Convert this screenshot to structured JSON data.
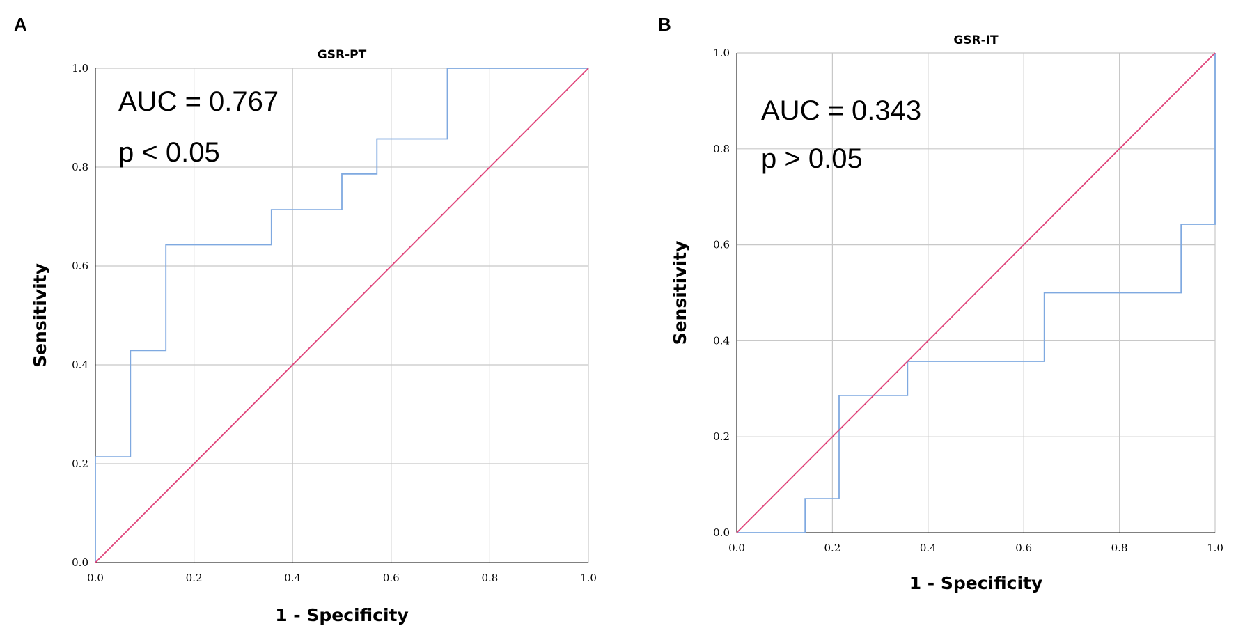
{
  "chart_data": [
    {
      "type": "line",
      "panel_label": "A",
      "title": "GSR-PT",
      "xlabel": "1 - Specificity",
      "ylabel": "Sensitivity",
      "xlim": [
        0,
        1
      ],
      "ylim": [
        0,
        1
      ],
      "xticks": [
        "0.0",
        "0.2",
        "0.4",
        "0.6",
        "0.8",
        "1.0"
      ],
      "yticks": [
        "0.0",
        "0.2",
        "0.4",
        "0.6",
        "0.8",
        "1.0"
      ],
      "grid": true,
      "annotations": [
        "AUC = 0.767",
        "p < 0.05"
      ],
      "series": [
        {
          "name": "ROC",
          "color": "#7fa9e0",
          "step": true,
          "x": [
            0.0,
            0.0,
            0.071,
            0.071,
            0.143,
            0.143,
            0.357,
            0.357,
            0.5,
            0.5,
            0.571,
            0.571,
            0.714,
            0.714,
            1.0
          ],
          "y": [
            0.0,
            0.214,
            0.214,
            0.429,
            0.429,
            0.643,
            0.643,
            0.714,
            0.714,
            0.786,
            0.786,
            0.857,
            0.857,
            1.0,
            1.0
          ]
        },
        {
          "name": "Reference",
          "color": "#e0457b",
          "step": false,
          "x": [
            0,
            1
          ],
          "y": [
            0,
            1
          ]
        }
      ]
    },
    {
      "type": "line",
      "panel_label": "B",
      "title": "GSR-IT",
      "xlabel": "1 - Specificity",
      "ylabel": "Sensitivity",
      "xlim": [
        0,
        1
      ],
      "ylim": [
        0,
        1
      ],
      "xticks": [
        "0.0",
        "0.2",
        "0.4",
        "0.6",
        "0.8",
        "1.0"
      ],
      "yticks": [
        "0.0",
        "0.2",
        "0.4",
        "0.6",
        "0.8",
        "1.0"
      ],
      "grid": true,
      "annotations": [
        "AUC = 0.343",
        "p > 0.05"
      ],
      "series": [
        {
          "name": "ROC",
          "color": "#7fa9e0",
          "step": true,
          "x": [
            0.0,
            0.143,
            0.143,
            0.214,
            0.214,
            0.357,
            0.357,
            0.643,
            0.643,
            0.929,
            0.929,
            1.0,
            1.0
          ],
          "y": [
            0.0,
            0.0,
            0.071,
            0.071,
            0.286,
            0.286,
            0.357,
            0.357,
            0.5,
            0.5,
            0.643,
            0.643,
            1.0
          ]
        },
        {
          "name": "Reference",
          "color": "#e0457b",
          "step": false,
          "x": [
            0,
            1
          ],
          "y": [
            0,
            1
          ]
        }
      ]
    }
  ]
}
